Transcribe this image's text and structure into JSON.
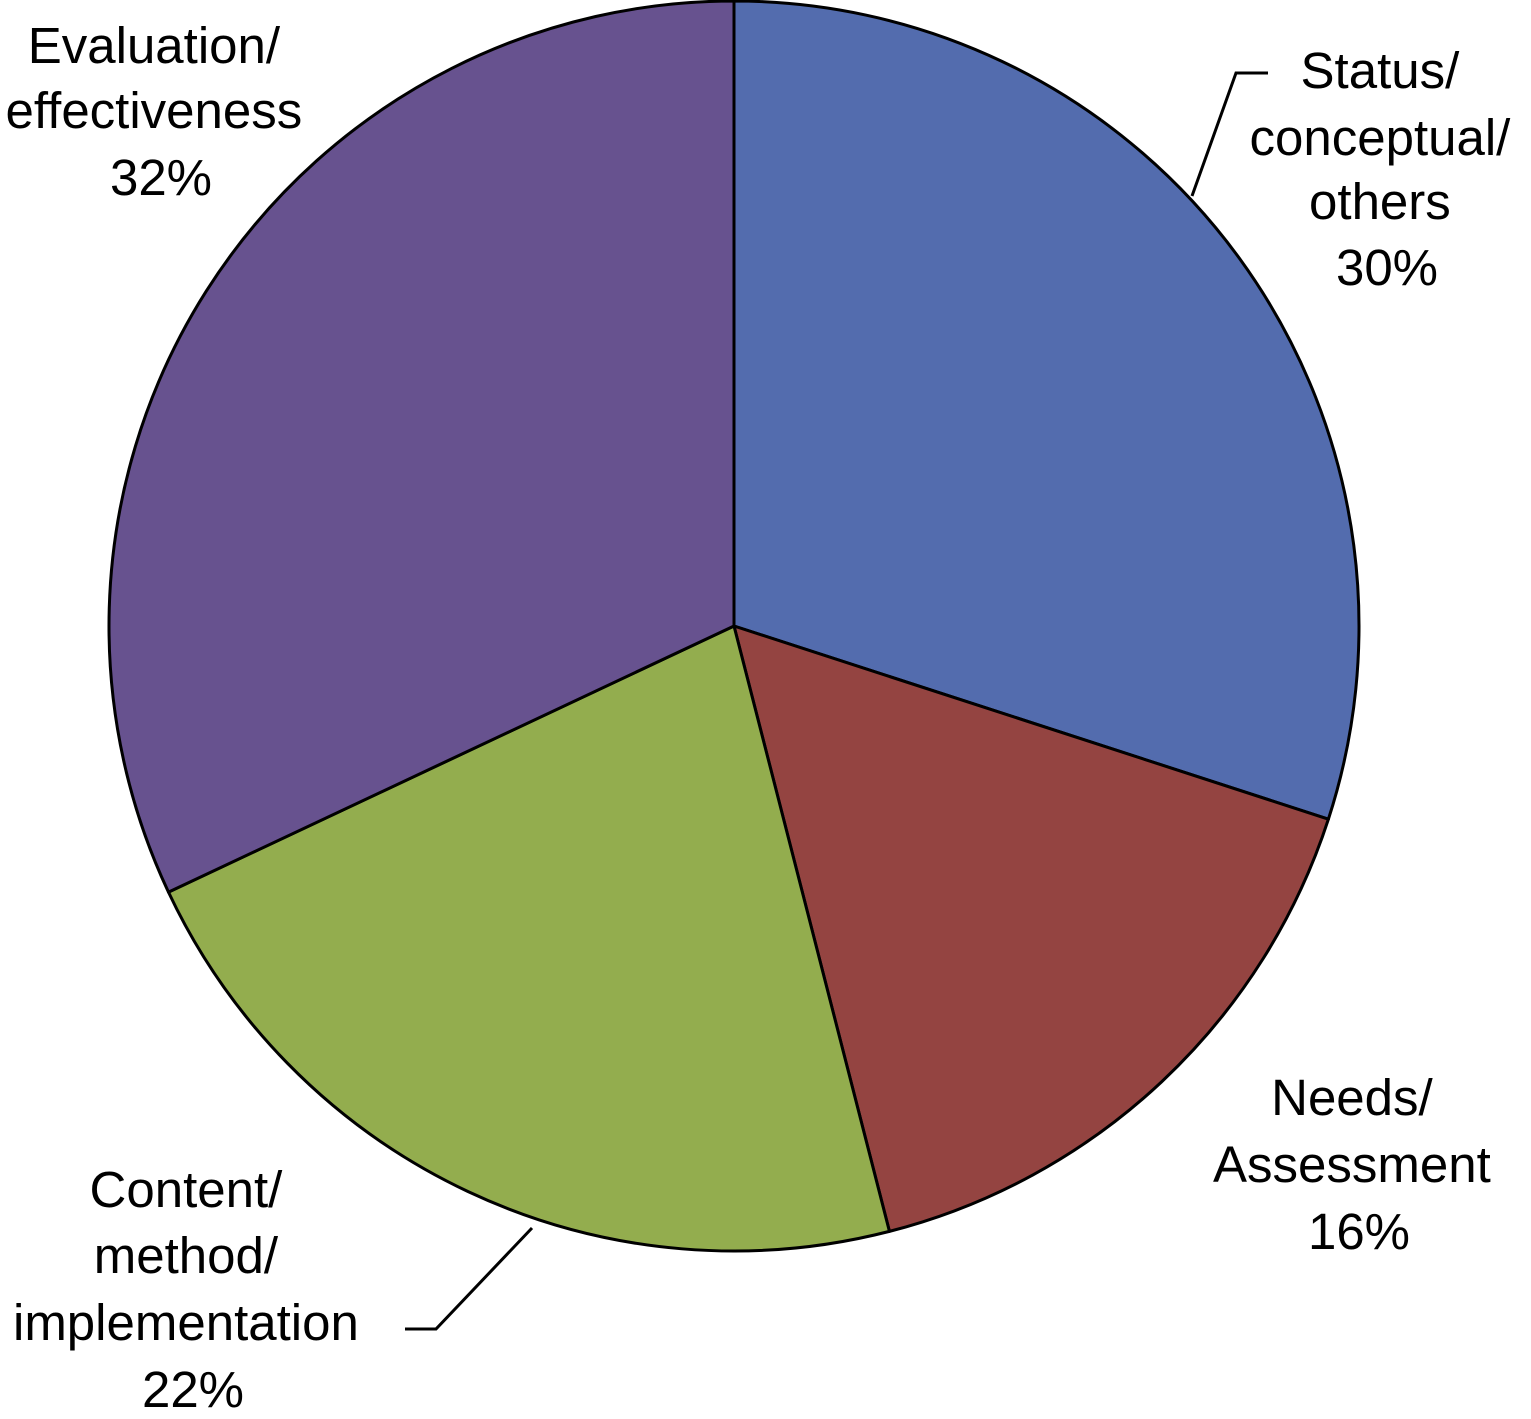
{
  "chart_data": {
    "type": "pie",
    "title": "",
    "start_angle_deg": 0,
    "direction": "clockwise",
    "slices": [
      {
        "label_lines": [
          "Status/",
          "conceptual/",
          "others"
        ],
        "value_label": "30%",
        "value": 30,
        "color": "#536CAE"
      },
      {
        "label_lines": [
          "Needs/",
          "Assessment"
        ],
        "value_label": "16%",
        "value": 16,
        "color": "#944441"
      },
      {
        "label_lines": [
          "Content/",
          "method/",
          "implementation"
        ],
        "value_label": "22%",
        "value": 22,
        "color": "#93AD4E"
      },
      {
        "label_lines": [
          "Evaluation/",
          "effectiveness"
        ],
        "value_label": "32%",
        "value": 32,
        "color": "#67528F"
      }
    ],
    "legend": "none"
  }
}
